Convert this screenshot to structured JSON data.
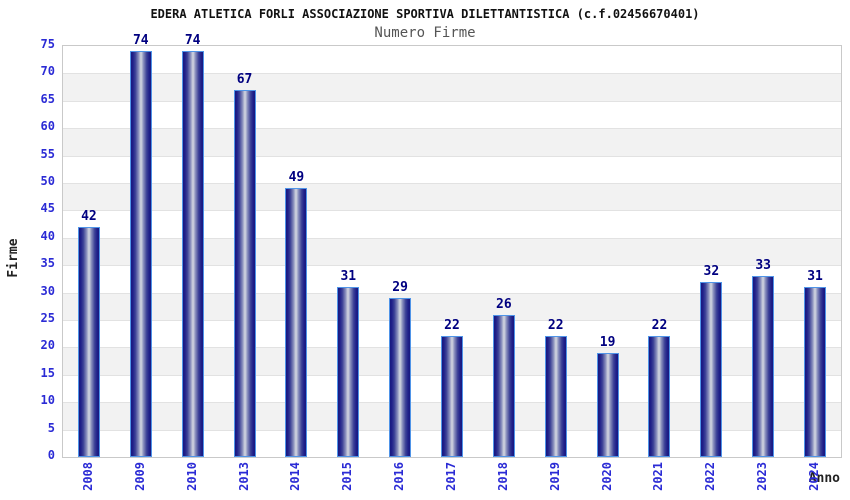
{
  "chart_data": {
    "type": "bar",
    "title": "EDERA ATLETICA FORLI ASSOCIAZIONE SPORTIVA DILETTANTISTICA (c.f.02456670401)",
    "subtitle": "Numero Firme",
    "xlabel": "Anno",
    "ylabel": "Firme",
    "categories": [
      "2008",
      "2009",
      "2010",
      "2013",
      "2014",
      "2015",
      "2016",
      "2017",
      "2018",
      "2019",
      "2020",
      "2021",
      "2022",
      "2023",
      "2024"
    ],
    "values": [
      42,
      74,
      74,
      67,
      49,
      31,
      29,
      22,
      26,
      22,
      19,
      22,
      32,
      33,
      31
    ],
    "ylim": [
      0,
      75
    ],
    "ytick_step": 5,
    "yticks": [
      0,
      5,
      10,
      15,
      20,
      25,
      30,
      35,
      40,
      45,
      50,
      55,
      60,
      65,
      70,
      75
    ],
    "grid": "horizontal alternating bands, gridline every 5",
    "legend": "none",
    "bar_labels_shown": true,
    "x_tick_rotation_deg": -90
  },
  "colors": {
    "background": "#ffffff",
    "band_white": "#ffffff",
    "band_gray": "#f2f2f2",
    "grid_line": "#e2e2e2",
    "plot_border": "#c9c9c9",
    "bar_border": "#4f94e8",
    "bar_edge_dark": "#17177f",
    "bar_center_light": "#ccd0dd",
    "tick_label": "#2b2bd5",
    "value_label": "#000080",
    "title_color": "#111111",
    "subtitle_color": "#555555",
    "axis_label_color": "#222222"
  }
}
